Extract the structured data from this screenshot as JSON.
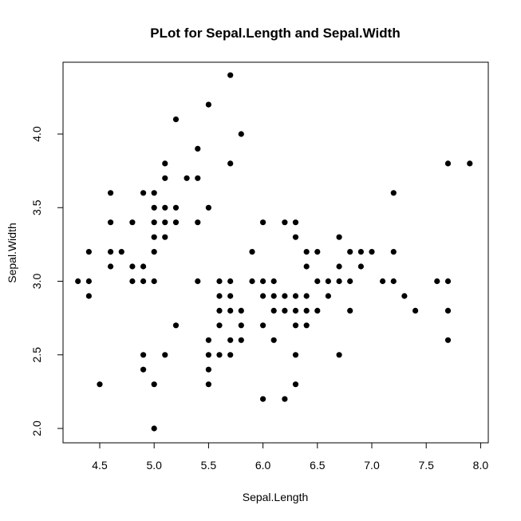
{
  "chart_data": {
    "type": "scatter",
    "title": "PLot for Sepal.Length and Sepal.Width",
    "xlabel": "Sepal.Length",
    "ylabel": "Sepal.Width",
    "xlim": [
      4.3,
      7.9
    ],
    "ylim": [
      2.0,
      4.4
    ],
    "x_ticks": [
      "4.5",
      "5.0",
      "5.5",
      "6.0",
      "6.5",
      "7.0",
      "7.5",
      "8.0"
    ],
    "y_ticks": [
      "2.0",
      "2.5",
      "3.0",
      "3.5",
      "4.0"
    ],
    "grid": false,
    "point_color": "#000000",
    "points": [
      [
        4.3,
        3.0
      ],
      [
        4.4,
        3.2
      ],
      [
        4.4,
        3.0
      ],
      [
        4.4,
        2.9
      ],
      [
        4.5,
        2.3
      ],
      [
        4.6,
        3.6
      ],
      [
        4.6,
        3.4
      ],
      [
        4.6,
        3.2
      ],
      [
        4.6,
        3.1
      ],
      [
        4.7,
        3.2
      ],
      [
        4.8,
        3.4
      ],
      [
        4.8,
        3.1
      ],
      [
        4.8,
        3.0
      ],
      [
        4.9,
        3.6
      ],
      [
        4.9,
        3.1
      ],
      [
        4.9,
        3.0
      ],
      [
        4.9,
        2.5
      ],
      [
        4.9,
        2.4
      ],
      [
        5.0,
        3.6
      ],
      [
        5.0,
        3.5
      ],
      [
        5.0,
        3.4
      ],
      [
        5.0,
        3.3
      ],
      [
        5.0,
        3.2
      ],
      [
        5.0,
        3.0
      ],
      [
        5.0,
        2.3
      ],
      [
        5.0,
        2.0
      ],
      [
        5.1,
        3.8
      ],
      [
        5.1,
        3.7
      ],
      [
        5.1,
        3.5
      ],
      [
        5.1,
        3.4
      ],
      [
        5.1,
        3.3
      ],
      [
        5.1,
        2.5
      ],
      [
        5.2,
        4.1
      ],
      [
        5.2,
        3.5
      ],
      [
        5.2,
        3.4
      ],
      [
        5.2,
        2.7
      ],
      [
        5.3,
        3.7
      ],
      [
        5.4,
        3.9
      ],
      [
        5.4,
        3.7
      ],
      [
        5.4,
        3.4
      ],
      [
        5.4,
        3.0
      ],
      [
        5.5,
        4.2
      ],
      [
        5.5,
        3.5
      ],
      [
        5.5,
        2.6
      ],
      [
        5.5,
        2.5
      ],
      [
        5.5,
        2.4
      ],
      [
        5.5,
        2.3
      ],
      [
        5.6,
        3.0
      ],
      [
        5.6,
        2.9
      ],
      [
        5.6,
        2.8
      ],
      [
        5.6,
        2.7
      ],
      [
        5.6,
        2.5
      ],
      [
        5.7,
        4.4
      ],
      [
        5.7,
        3.8
      ],
      [
        5.7,
        3.0
      ],
      [
        5.7,
        2.9
      ],
      [
        5.7,
        2.8
      ],
      [
        5.7,
        2.6
      ],
      [
        5.7,
        2.5
      ],
      [
        5.8,
        4.0
      ],
      [
        5.8,
        2.8
      ],
      [
        5.8,
        2.7
      ],
      [
        5.8,
        2.6
      ],
      [
        5.9,
        3.2
      ],
      [
        5.9,
        3.0
      ],
      [
        6.0,
        3.4
      ],
      [
        6.0,
        3.0
      ],
      [
        6.0,
        2.9
      ],
      [
        6.0,
        2.7
      ],
      [
        6.0,
        2.2
      ],
      [
        6.1,
        3.0
      ],
      [
        6.1,
        2.9
      ],
      [
        6.1,
        2.8
      ],
      [
        6.1,
        2.6
      ],
      [
        6.2,
        3.4
      ],
      [
        6.2,
        2.9
      ],
      [
        6.2,
        2.8
      ],
      [
        6.2,
        2.2
      ],
      [
        6.3,
        3.4
      ],
      [
        6.3,
        3.3
      ],
      [
        6.3,
        2.9
      ],
      [
        6.3,
        2.8
      ],
      [
        6.3,
        2.7
      ],
      [
        6.3,
        2.5
      ],
      [
        6.3,
        2.3
      ],
      [
        6.4,
        3.2
      ],
      [
        6.4,
        3.1
      ],
      [
        6.4,
        2.9
      ],
      [
        6.4,
        2.8
      ],
      [
        6.4,
        2.7
      ],
      [
        6.5,
        3.2
      ],
      [
        6.5,
        3.0
      ],
      [
        6.5,
        2.8
      ],
      [
        6.6,
        3.0
      ],
      [
        6.6,
        2.9
      ],
      [
        6.7,
        3.3
      ],
      [
        6.7,
        3.1
      ],
      [
        6.7,
        3.0
      ],
      [
        6.7,
        2.5
      ],
      [
        6.8,
        3.2
      ],
      [
        6.8,
        3.0
      ],
      [
        6.8,
        2.8
      ],
      [
        6.9,
        3.2
      ],
      [
        6.9,
        3.1
      ],
      [
        7.0,
        3.2
      ],
      [
        7.1,
        3.0
      ],
      [
        7.2,
        3.6
      ],
      [
        7.2,
        3.2
      ],
      [
        7.2,
        3.0
      ],
      [
        7.3,
        2.9
      ],
      [
        7.4,
        2.8
      ],
      [
        7.6,
        3.0
      ],
      [
        7.7,
        3.8
      ],
      [
        7.7,
        3.0
      ],
      [
        7.7,
        2.8
      ],
      [
        7.7,
        2.6
      ],
      [
        7.9,
        3.8
      ]
    ]
  }
}
